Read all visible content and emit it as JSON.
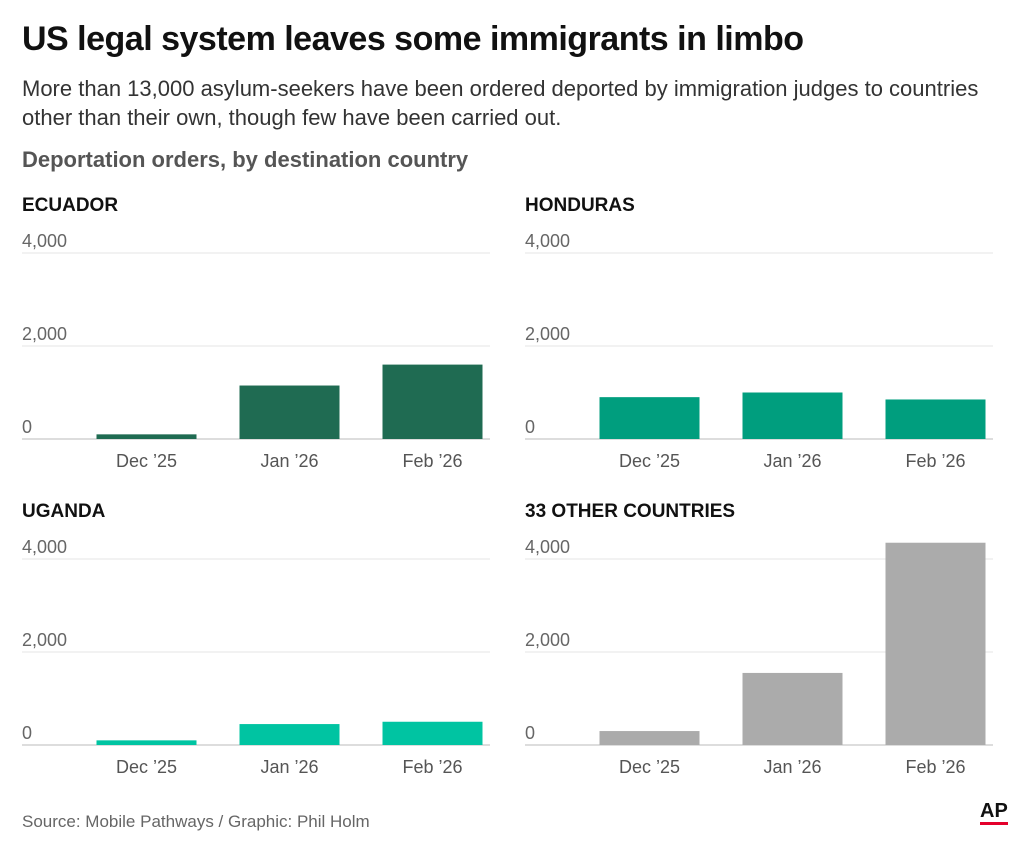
{
  "title": "US legal system leaves some immigrants in limbo",
  "subtitle": "More than 13,000 asylum-seekers have been ordered deported by immigration judges to countries other than their own, though few have been carried out.",
  "chart_label": "Deportation orders, by destination country",
  "source": "Source: Mobile Pathways / Graphic: Phil Holm",
  "logo": "AP",
  "chart_data": [
    {
      "type": "bar",
      "title": "ECUADOR",
      "categories": [
        "Dec ’25",
        "Jan ’26",
        "Feb ’26"
      ],
      "values": [
        100,
        1150,
        1600
      ],
      "color": "#1f6b52",
      "ylim": [
        0,
        4400
      ],
      "yticks": [
        0,
        {
          "value": 2000,
          "label": "2,000"
        },
        {
          "value": 4000,
          "label": "4,000"
        }
      ],
      "grid": true
    },
    {
      "type": "bar",
      "title": "HONDURAS",
      "categories": [
        "Dec ’25",
        "Jan ’26",
        "Feb ’26"
      ],
      "values": [
        900,
        1000,
        850
      ],
      "color": "#009e7e",
      "ylim": [
        0,
        4400
      ],
      "yticks": [
        0,
        {
          "value": 2000,
          "label": "2,000"
        },
        {
          "value": 4000,
          "label": "4,000"
        }
      ],
      "grid": true
    },
    {
      "type": "bar",
      "title": "UGANDA",
      "categories": [
        "Dec ’25",
        "Jan ’26",
        "Feb ’26"
      ],
      "values": [
        100,
        450,
        500
      ],
      "color": "#00c4a2",
      "ylim": [
        0,
        4400
      ],
      "yticks": [
        0,
        {
          "value": 2000,
          "label": "2,000"
        },
        {
          "value": 4000,
          "label": "4,000"
        }
      ],
      "grid": true
    },
    {
      "type": "bar",
      "title": "33 OTHER COUNTRIES",
      "categories": [
        "Dec ’25",
        "Jan ’26",
        "Feb ’26"
      ],
      "values": [
        300,
        1550,
        4350
      ],
      "color": "#ababab",
      "ylim": [
        0,
        4400
      ],
      "yticks": [
        0,
        {
          "value": 2000,
          "label": "2,000"
        },
        {
          "value": 4000,
          "label": "4,000"
        }
      ],
      "grid": true
    }
  ]
}
